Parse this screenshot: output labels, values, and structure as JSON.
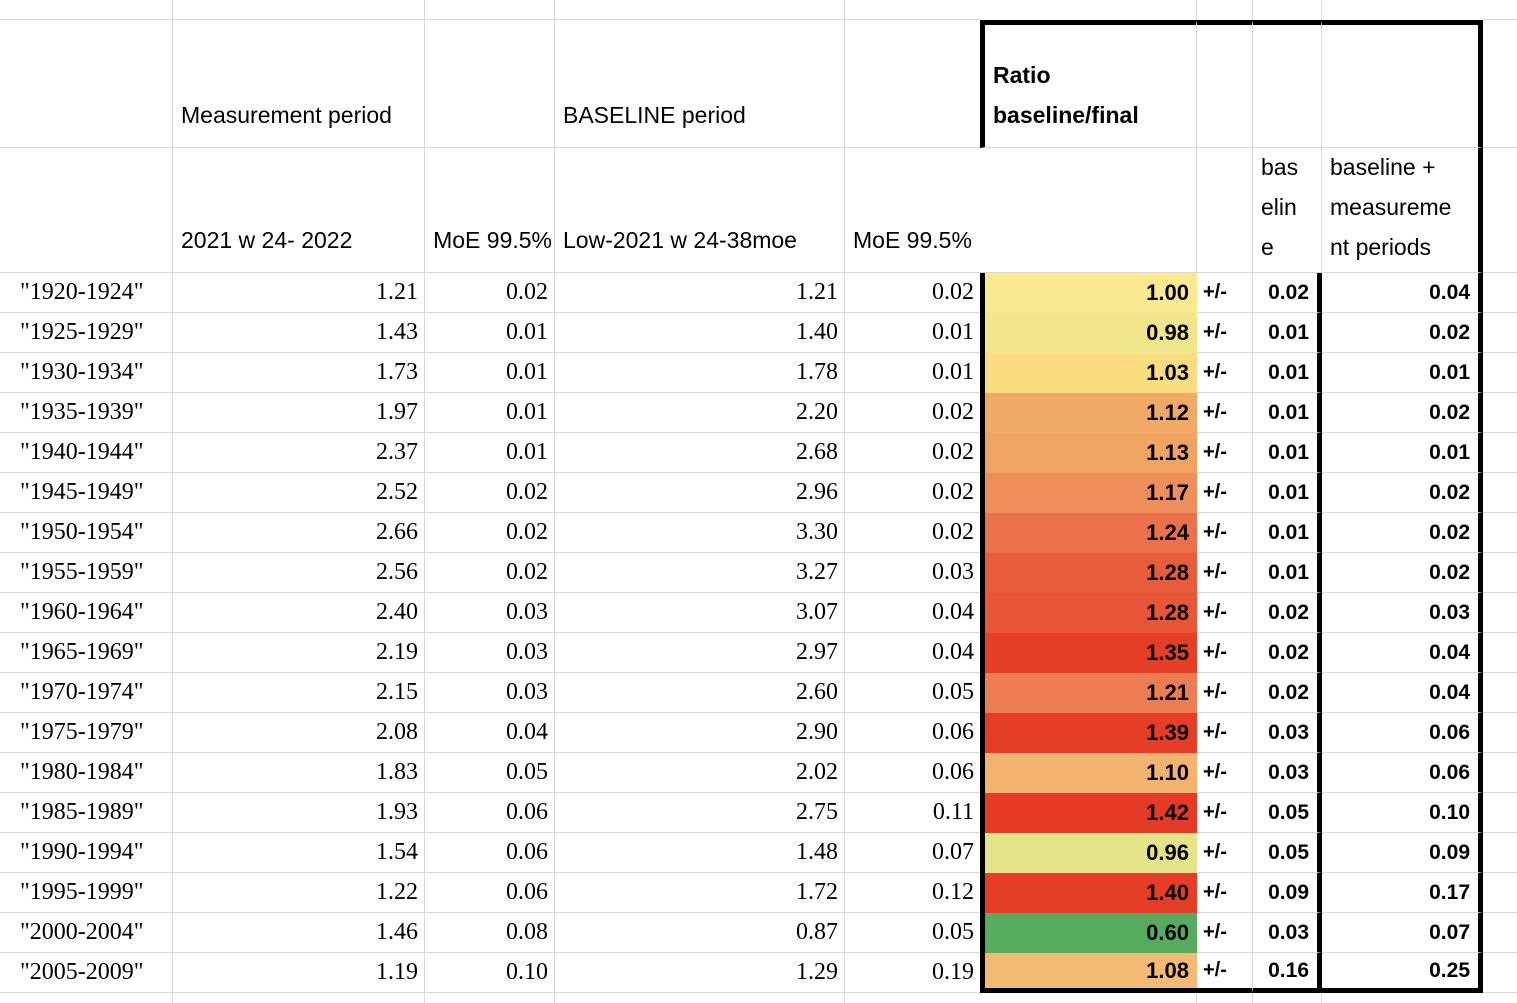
{
  "sheet": {
    "headers": {
      "measurement_period": "Measurement period",
      "baseline_period": "BASELINE period",
      "ratio": "Ratio\nbaseline/final",
      "measurement_sub": "2021 w 24- 2022",
      "measurement_moe": "MoE 99.5%",
      "baseline_sub": "Low-2021 w 24-38moe",
      "baseline_moe": "MoE 99.5%",
      "ratio_moe_baseline": "bas\nelin\ne",
      "ratio_moe_total": "baseline +\nmeasureme\nnt periods"
    },
    "plus_minus": "+/-",
    "colors": {
      "gridline": "#d8d8d8",
      "thick_border": "#000000",
      "heat_scale_low": "#55ac5f",
      "heat_scale_mid": "#f9e98f",
      "heat_scale_high": "#e63d27"
    },
    "rows": [
      {
        "cohort": "\"1920-1924\"",
        "measurement": "1.21",
        "measurement_moe": "0.02",
        "baseline": "1.21",
        "baseline_moe": "0.02",
        "ratio": "1.00",
        "ratio_moe": "0.02",
        "combined_moe": "0.04",
        "fill": "#fae98f"
      },
      {
        "cohort": "\"1925-1929\"",
        "measurement": "1.43",
        "measurement_moe": "0.01",
        "baseline": "1.40",
        "baseline_moe": "0.01",
        "ratio": "0.98",
        "ratio_moe": "0.01",
        "combined_moe": "0.02",
        "fill": "#f1e68c"
      },
      {
        "cohort": "\"1930-1934\"",
        "measurement": "1.73",
        "measurement_moe": "0.01",
        "baseline": "1.78",
        "baseline_moe": "0.01",
        "ratio": "1.03",
        "ratio_moe": "0.01",
        "combined_moe": "0.01",
        "fill": "#f8dc7e"
      },
      {
        "cohort": "\"1935-1939\"",
        "measurement": "1.97",
        "measurement_moe": "0.01",
        "baseline": "2.20",
        "baseline_moe": "0.02",
        "ratio": "1.12",
        "ratio_moe": "0.01",
        "combined_moe": "0.02",
        "fill": "#f1aa65"
      },
      {
        "cohort": "\"1940-1944\"",
        "measurement": "2.37",
        "measurement_moe": "0.01",
        "baseline": "2.68",
        "baseline_moe": "0.02",
        "ratio": "1.13",
        "ratio_moe": "0.01",
        "combined_moe": "0.01",
        "fill": "#efa461"
      },
      {
        "cohort": "\"1945-1949\"",
        "measurement": "2.52",
        "measurement_moe": "0.02",
        "baseline": "2.96",
        "baseline_moe": "0.02",
        "ratio": "1.17",
        "ratio_moe": "0.01",
        "combined_moe": "0.02",
        "fill": "#ee8f5b"
      },
      {
        "cohort": "\"1950-1954\"",
        "measurement": "2.66",
        "measurement_moe": "0.02",
        "baseline": "3.30",
        "baseline_moe": "0.02",
        "ratio": "1.24",
        "ratio_moe": "0.01",
        "combined_moe": "0.02",
        "fill": "#ea7149"
      },
      {
        "cohort": "\"1955-1959\"",
        "measurement": "2.56",
        "measurement_moe": "0.02",
        "baseline": "3.27",
        "baseline_moe": "0.03",
        "ratio": "1.28",
        "ratio_moe": "0.01",
        "combined_moe": "0.02",
        "fill": "#e75c3b"
      },
      {
        "cohort": "\"1960-1964\"",
        "measurement": "2.40",
        "measurement_moe": "0.03",
        "baseline": "3.07",
        "baseline_moe": "0.04",
        "ratio": "1.28",
        "ratio_moe": "0.02",
        "combined_moe": "0.03",
        "fill": "#e65637"
      },
      {
        "cohort": "\"1965-1969\"",
        "measurement": "2.19",
        "measurement_moe": "0.03",
        "baseline": "2.97",
        "baseline_moe": "0.04",
        "ratio": "1.35",
        "ratio_moe": "0.02",
        "combined_moe": "0.04",
        "fill": "#e63f28"
      },
      {
        "cohort": "\"1970-1974\"",
        "measurement": "2.15",
        "measurement_moe": "0.03",
        "baseline": "2.60",
        "baseline_moe": "0.05",
        "ratio": "1.21",
        "ratio_moe": "0.02",
        "combined_moe": "0.04",
        "fill": "#ec7c52"
      },
      {
        "cohort": "\"1975-1979\"",
        "measurement": "2.08",
        "measurement_moe": "0.04",
        "baseline": "2.90",
        "baseline_moe": "0.06",
        "ratio": "1.39",
        "ratio_moe": "0.03",
        "combined_moe": "0.06",
        "fill": "#e63d27"
      },
      {
        "cohort": "\"1980-1984\"",
        "measurement": "1.83",
        "measurement_moe": "0.05",
        "baseline": "2.02",
        "baseline_moe": "0.06",
        "ratio": "1.10",
        "ratio_moe": "0.03",
        "combined_moe": "0.06",
        "fill": "#f1b36d"
      },
      {
        "cohort": "\"1985-1989\"",
        "measurement": "1.93",
        "measurement_moe": "0.06",
        "baseline": "2.75",
        "baseline_moe": "0.11",
        "ratio": "1.42",
        "ratio_moe": "0.05",
        "combined_moe": "0.10",
        "fill": "#e53b26"
      },
      {
        "cohort": "\"1990-1994\"",
        "measurement": "1.54",
        "measurement_moe": "0.06",
        "baseline": "1.48",
        "baseline_moe": "0.07",
        "ratio": "0.96",
        "ratio_moe": "0.05",
        "combined_moe": "0.09",
        "fill": "#e4e388"
      },
      {
        "cohort": "\"1995-1999\"",
        "measurement": "1.22",
        "measurement_moe": "0.06",
        "baseline": "1.72",
        "baseline_moe": "0.12",
        "ratio": "1.40",
        "ratio_moe": "0.09",
        "combined_moe": "0.17",
        "fill": "#e63d27"
      },
      {
        "cohort": "\"2000-2004\"",
        "measurement": "1.46",
        "measurement_moe": "0.08",
        "baseline": "0.87",
        "baseline_moe": "0.05",
        "ratio": "0.60",
        "ratio_moe": "0.03",
        "combined_moe": "0.07",
        "fill": "#55ac5f"
      },
      {
        "cohort": "\"2005-2009\"",
        "measurement": "1.19",
        "measurement_moe": "0.10",
        "baseline": "1.29",
        "baseline_moe": "0.19",
        "ratio": "1.08",
        "ratio_moe": "0.16",
        "combined_moe": "0.25",
        "fill": "#f2ba72"
      }
    ]
  }
}
